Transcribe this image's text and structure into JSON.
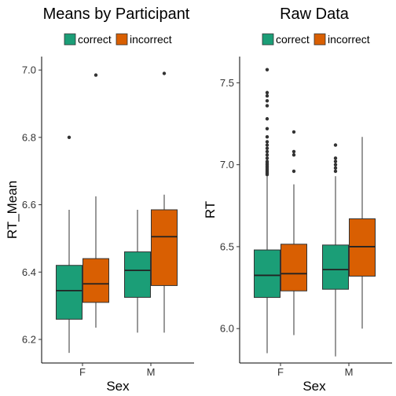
{
  "chart_data": [
    {
      "type": "box",
      "title": "Means by Participant",
      "xlabel": "Sex",
      "ylabel": "RT_Mean",
      "categories": [
        "F",
        "M"
      ],
      "ylim": [
        6.13,
        7.04
      ],
      "yticks": [
        6.2,
        6.4,
        6.6,
        6.8,
        7.0
      ],
      "ytick_labels": [
        "6.2",
        "6.4",
        "6.6",
        "6.8",
        "7.0"
      ],
      "legend_position": "top",
      "grid": false,
      "series": [
        {
          "name": "correct",
          "color": "#1b9e77",
          "boxes": [
            {
              "category": "F",
              "min": 6.16,
              "q1": 6.26,
              "median": 6.345,
              "q3": 6.42,
              "max": 6.585,
              "outliers": [
                6.8
              ]
            },
            {
              "category": "M",
              "min": 6.22,
              "q1": 6.325,
              "median": 6.405,
              "q3": 6.46,
              "max": 6.585,
              "outliers": []
            }
          ]
        },
        {
          "name": "incorrect",
          "color": "#d95f02",
          "boxes": [
            {
              "category": "F",
              "min": 6.235,
              "q1": 6.31,
              "median": 6.365,
              "q3": 6.44,
              "max": 6.625,
              "outliers": [
                6.985
              ]
            },
            {
              "category": "M",
              "min": 6.22,
              "q1": 6.36,
              "median": 6.505,
              "q3": 6.585,
              "max": 6.63,
              "outliers": [
                6.99
              ]
            }
          ]
        }
      ]
    },
    {
      "type": "box",
      "title": "Raw Data",
      "xlabel": "Sex",
      "ylabel": "RT",
      "categories": [
        "F",
        "M"
      ],
      "ylim": [
        5.79,
        7.66
      ],
      "yticks": [
        6.0,
        6.5,
        7.0,
        7.5
      ],
      "ytick_labels": [
        "6.0",
        "6.5",
        "7.0",
        "7.5"
      ],
      "legend_position": "top",
      "grid": false,
      "series": [
        {
          "name": "correct",
          "color": "#1b9e77",
          "boxes": [
            {
              "category": "F",
              "min": 5.85,
              "q1": 6.19,
              "median": 6.325,
              "q3": 6.48,
              "max": 6.93,
              "outliers": [
                6.94,
                6.95,
                6.96,
                6.97,
                6.98,
                6.99,
                7.0,
                7.01,
                7.02,
                7.04,
                7.06,
                7.08,
                7.1,
                7.12,
                7.14,
                7.17,
                7.22,
                7.28,
                7.36,
                7.39,
                7.42,
                7.44,
                7.58
              ]
            },
            {
              "category": "M",
              "min": 5.83,
              "q1": 6.24,
              "median": 6.36,
              "q3": 6.51,
              "max": 6.93,
              "outliers": [
                6.96,
                6.98,
                7.0,
                7.02,
                7.04,
                7.12
              ]
            }
          ]
        },
        {
          "name": "incorrect",
          "color": "#d95f02",
          "boxes": [
            {
              "category": "F",
              "min": 5.96,
              "q1": 6.23,
              "median": 6.335,
              "q3": 6.515,
              "max": 6.88,
              "outliers": [
                6.96,
                7.06,
                7.08,
                7.2
              ]
            },
            {
              "category": "M",
              "min": 6.0,
              "q1": 6.32,
              "median": 6.5,
              "q3": 6.67,
              "max": 7.17,
              "outliers": []
            }
          ]
        }
      ]
    }
  ]
}
